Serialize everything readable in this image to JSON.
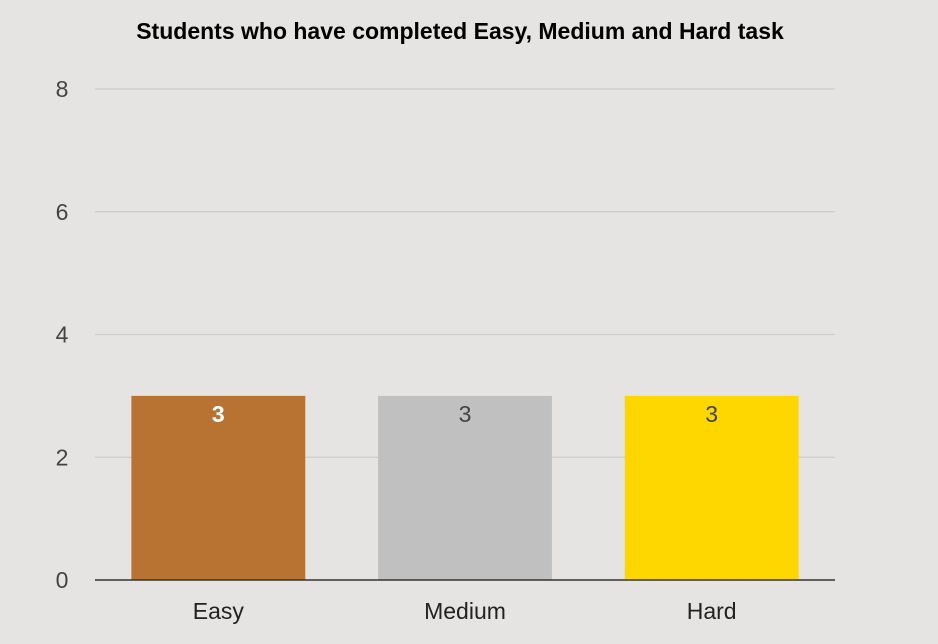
{
  "chart_data": {
    "type": "bar",
    "title": "Students who have completed Easy, Medium and Hard task",
    "categories": [
      "Easy",
      "Medium",
      "Hard"
    ],
    "values": [
      3,
      3,
      3
    ],
    "data_labels": [
      "3",
      "3",
      "3"
    ],
    "ylim": [
      0,
      8
    ],
    "yticks": [
      0,
      2,
      4,
      6,
      8
    ],
    "ytick_labels": [
      "0",
      "2",
      "4",
      "6",
      "8"
    ],
    "grid": true,
    "legend": false,
    "colors": {
      "bars": [
        "#b87333",
        "#c0c0c0",
        "#ffd700"
      ],
      "data_labels": [
        "#ffffff",
        "#444444",
        "#444444"
      ],
      "background": "#e5e4e3",
      "gridline": "#cccccc",
      "axis": "#333333"
    }
  }
}
